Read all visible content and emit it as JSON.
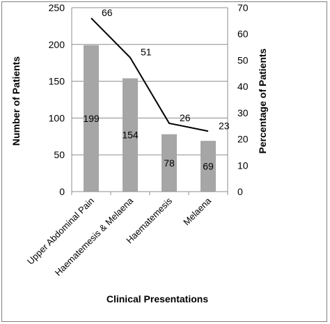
{
  "chart_data": {
    "type": "bar",
    "categories": [
      "Upper Abdominal Pain",
      "Haematemesis & Melaena",
      "Haematemesis",
      "Melaena"
    ],
    "series": [
      {
        "type": "bar",
        "axis": "left",
        "values": [
          199,
          154,
          78,
          69
        ],
        "color": "#a6a6a6"
      },
      {
        "type": "line",
        "axis": "right",
        "values": [
          66,
          51,
          26,
          23
        ],
        "color": "#000000"
      }
    ],
    "xlabel": "Clinical Presentations",
    "ylabel": "Number of Patients",
    "y2label": "Percentage of Patients",
    "ylim": [
      0,
      250
    ],
    "y2lim": [
      0,
      70
    ],
    "yticks": [
      0,
      50,
      100,
      150,
      200,
      250
    ],
    "y2ticks": [
      0,
      10,
      20,
      30,
      40,
      50,
      60,
      70
    ],
    "grid": true,
    "legend": "none"
  }
}
